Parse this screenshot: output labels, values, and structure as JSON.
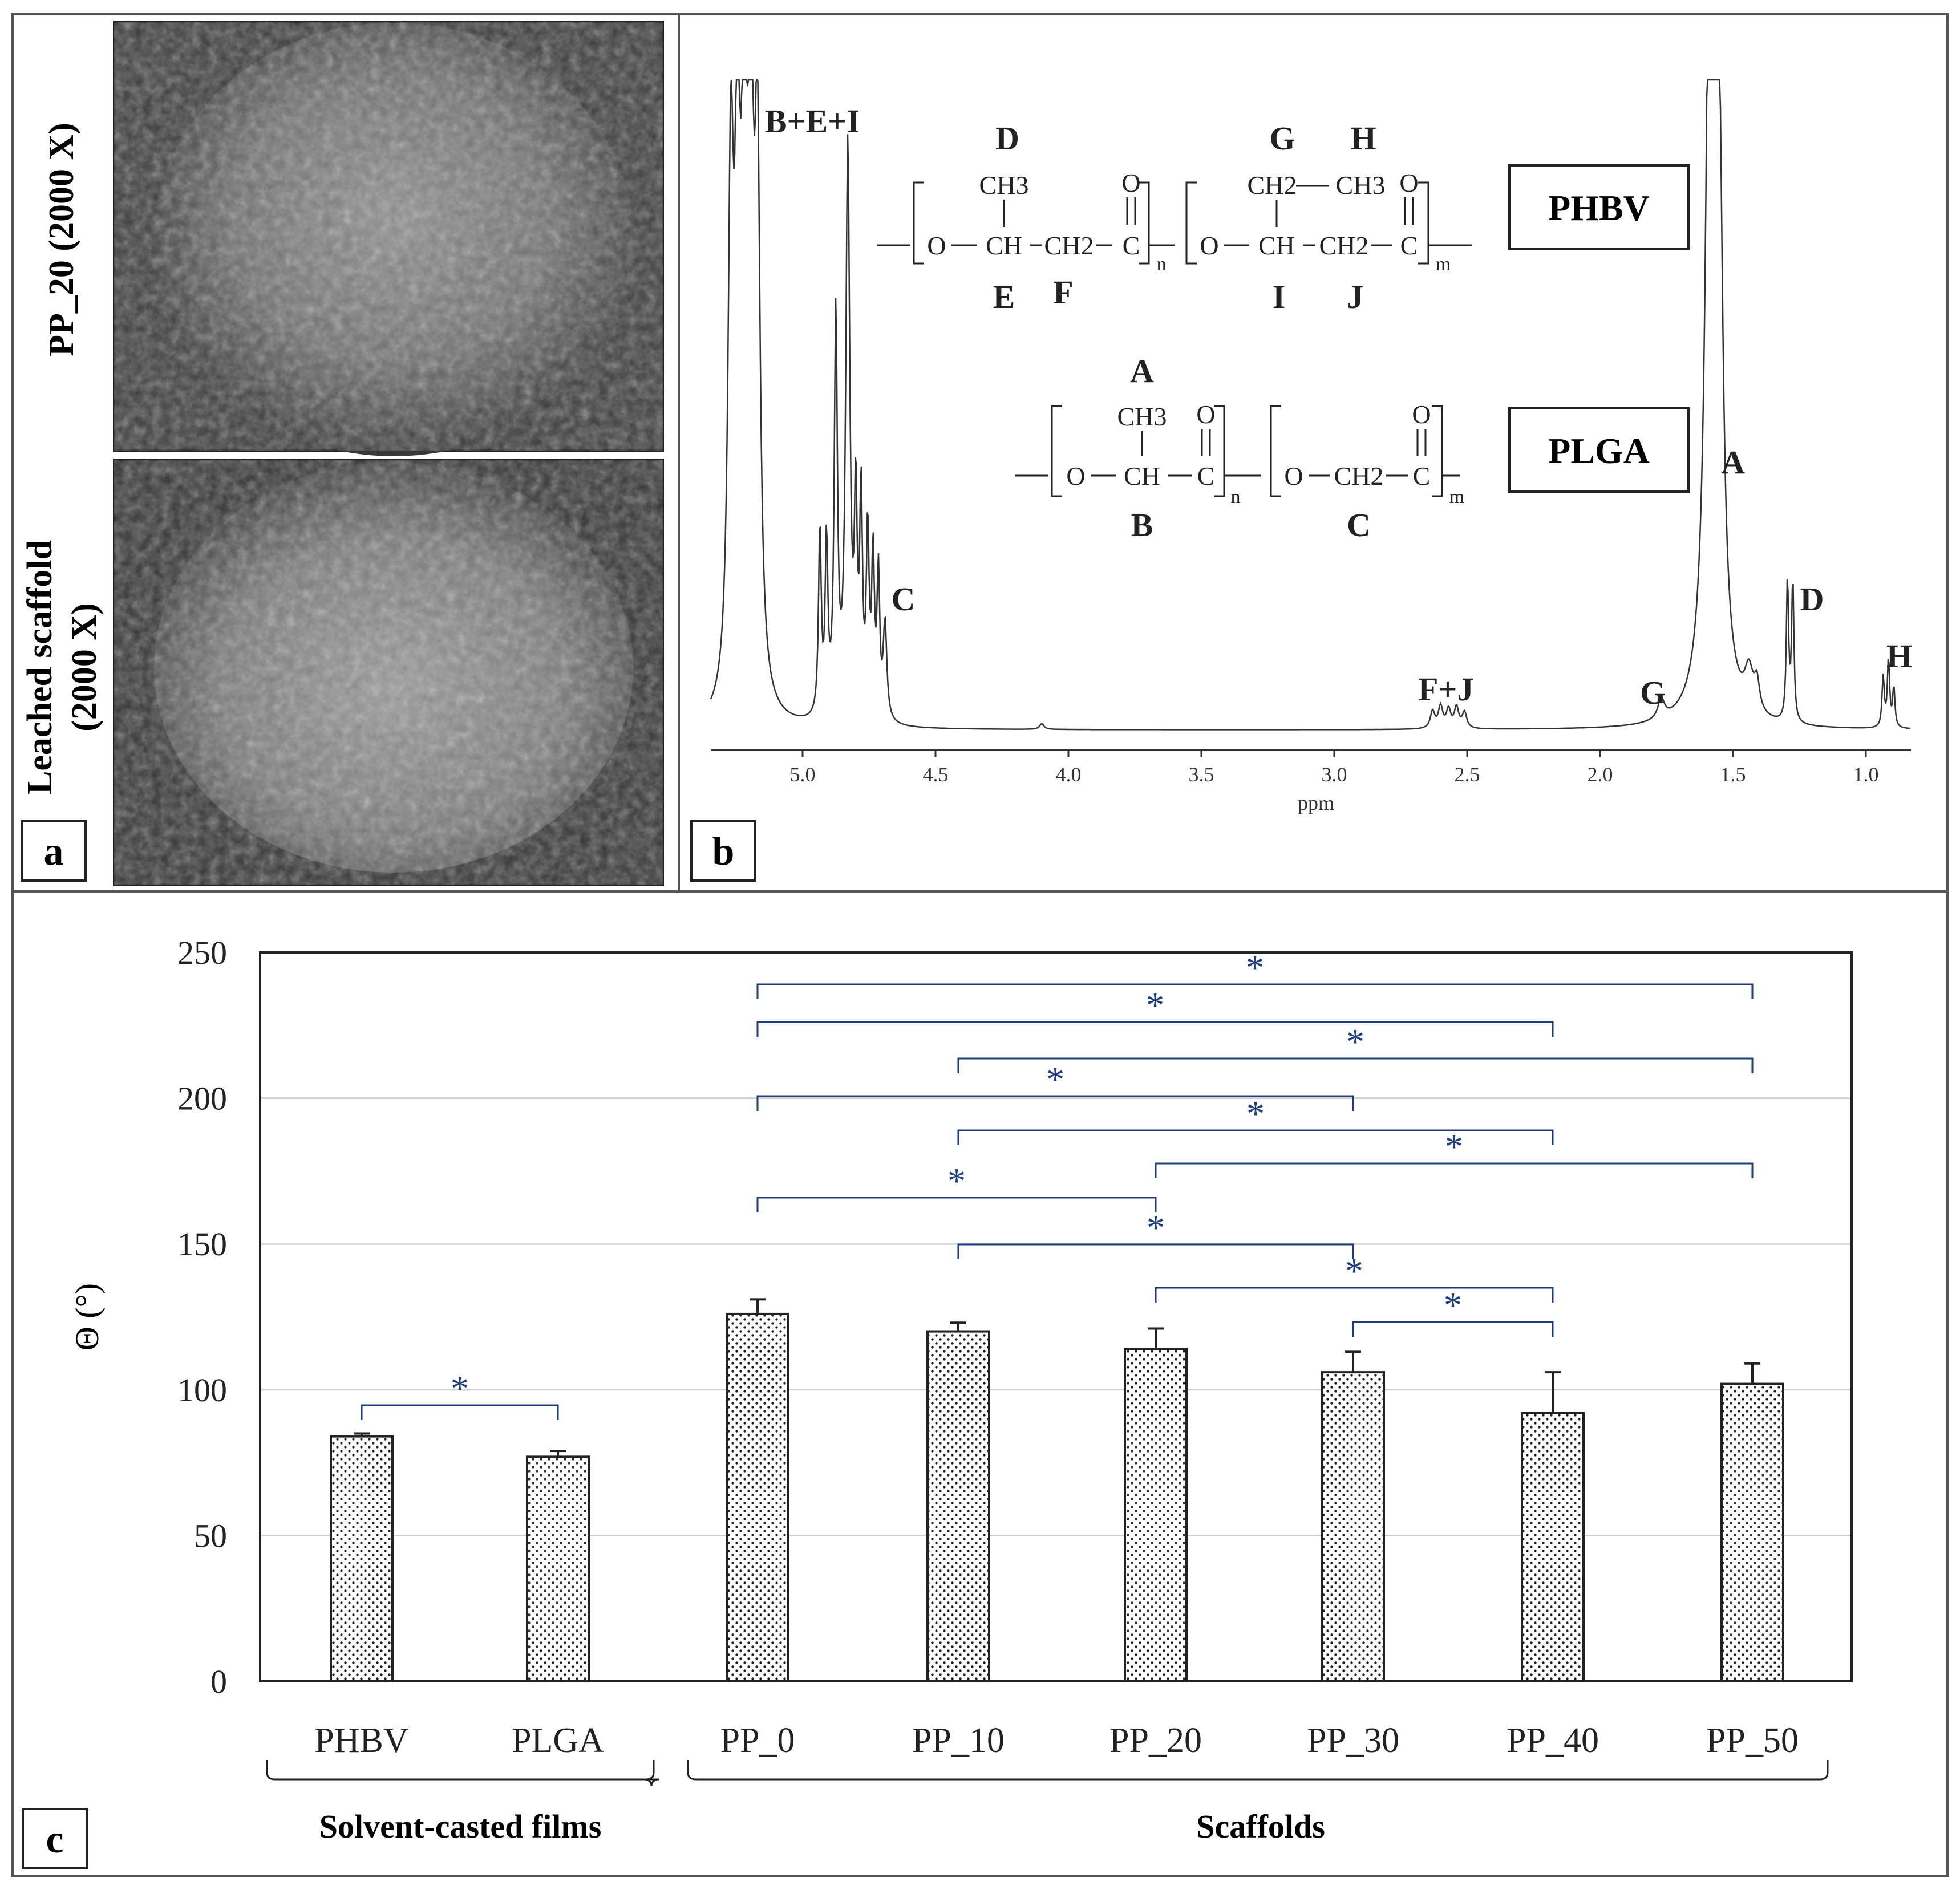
{
  "panels": {
    "a": {
      "label": "a",
      "images": [
        {
          "caption": "PP_20 (2000 X)"
        },
        {
          "caption_lines": [
            "Leached scaffold",
            "(2000 X)"
          ]
        }
      ]
    },
    "b": {
      "label": "b",
      "xlabel": "ppm",
      "xticks": [
        5.0,
        4.5,
        4.0,
        3.5,
        3.0,
        2.5,
        2.0,
        1.5,
        1.0
      ],
      "peak_labels": [
        {
          "text": "B+E+I",
          "ppm": 5.2
        },
        {
          "text": "C",
          "ppm": 4.6
        },
        {
          "text": "F+J",
          "ppm": 2.58
        },
        {
          "text": "G",
          "ppm": 1.78
        },
        {
          "text": "A",
          "ppm": 1.56
        },
        {
          "text": "D",
          "ppm": 1.28
        },
        {
          "text": "H",
          "ppm": 0.9
        }
      ],
      "polymers": [
        {
          "name": "PHBV",
          "letters": {
            "top": [
              "D",
              "G",
              "H"
            ],
            "bottom": [
              "E",
              "F",
              "I",
              "J"
            ]
          },
          "groups": [
            "CH3",
            "CH2",
            "CH3",
            "O",
            "O",
            "O",
            "CH",
            "CH2",
            "C",
            "O",
            "CH",
            "CH2",
            "C"
          ],
          "subscripts": [
            "n",
            "m"
          ]
        },
        {
          "name": "PLGA",
          "letters": {
            "top": [
              "A"
            ],
            "bottom": [
              "B",
              "C"
            ]
          },
          "groups": [
            "CH3",
            "O",
            "O",
            "O",
            "CH",
            "C",
            "O",
            "CH2",
            "C"
          ],
          "subscripts": [
            "n",
            "m"
          ]
        }
      ]
    },
    "c": {
      "label": "c",
      "group_labels": [
        "Solvent-casted films",
        "Scaffolds"
      ],
      "significance_marker": "*"
    }
  },
  "chart_data": {
    "type": "bar",
    "categories": [
      "PHBV",
      "PLGA",
      "PP_0",
      "PP_10",
      "PP_20",
      "PP_30",
      "PP_40",
      "PP_50"
    ],
    "values": [
      84,
      77,
      126,
      120,
      114,
      106,
      92,
      102
    ],
    "errors": [
      1,
      2,
      5,
      3,
      7,
      7,
      14,
      7
    ],
    "ylabel": "Θ (°)",
    "ylim": [
      0,
      250
    ],
    "yticks": [
      0,
      50,
      100,
      150,
      200,
      250
    ],
    "grid": true,
    "bar_fill": "dotted",
    "significance_color": "#1f3d7a",
    "significance_pairs": [
      [
        "PHBV",
        "PLGA"
      ],
      [
        "PP_0",
        "PP_50"
      ],
      [
        "PP_0",
        "PP_40"
      ],
      [
        "PP_10",
        "PP_50"
      ],
      [
        "PP_0",
        "PP_30"
      ],
      [
        "PP_10",
        "PP_40"
      ],
      [
        "PP_20",
        "PP_50"
      ],
      [
        "PP_0",
        "PP_20"
      ],
      [
        "PP_10",
        "PP_30"
      ],
      [
        "PP_20",
        "PP_40"
      ],
      [
        "PP_30",
        "PP_40"
      ]
    ]
  }
}
